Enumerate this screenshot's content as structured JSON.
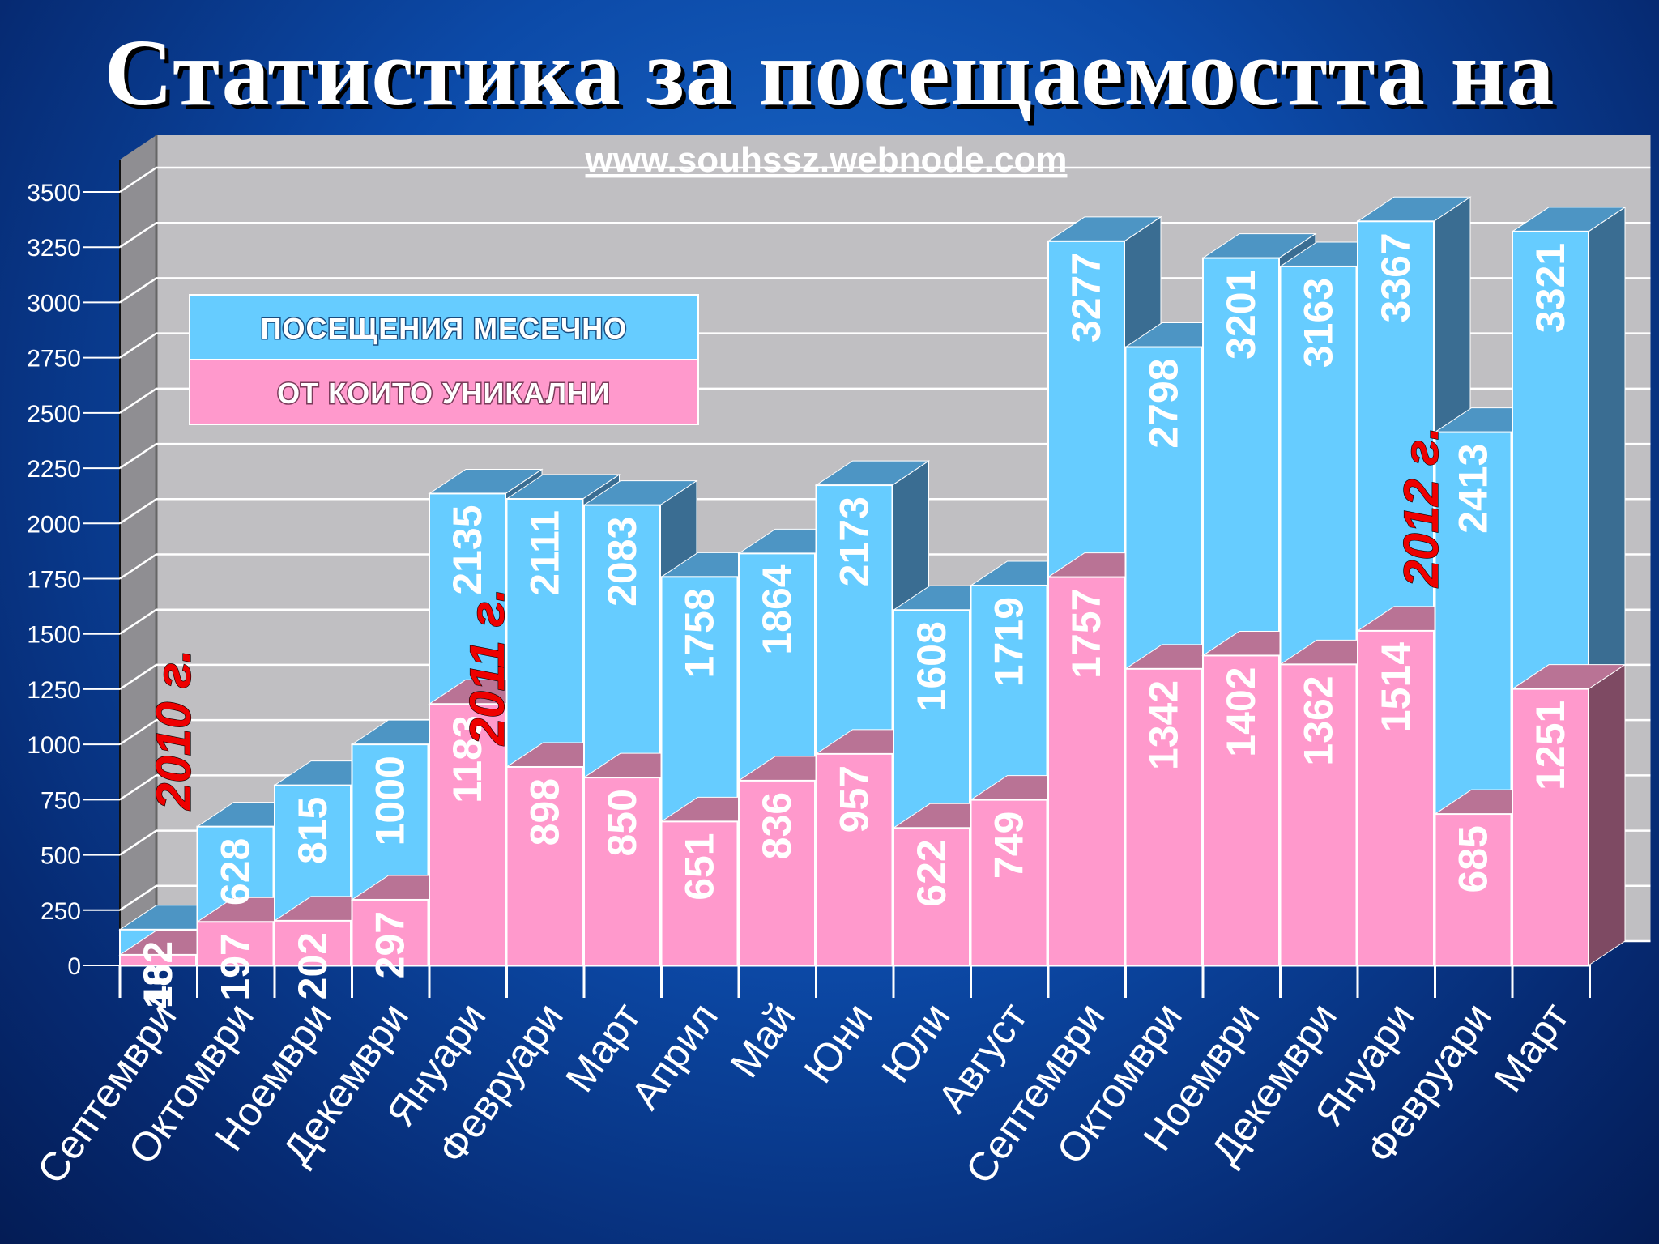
{
  "title": "Статистика за посещаемостта на",
  "subtitle": "www.souhssz.webnode.com",
  "legend": {
    "total_label": "ПОСЕЩЕНИЯ МЕСЕЧНО",
    "unique_label": "ОТ КОИТО УНИКАЛНИ"
  },
  "colors": {
    "total": "#66ccff",
    "unique": "#ff99cc",
    "wall": "#c0bfc2",
    "year_marker": "#ee0000"
  },
  "chart_data": {
    "type": "bar",
    "title": "Статистика за посещаемостта на",
    "categories": [
      "Септември",
      "Октомври",
      "Ноември",
      "Декември",
      "Януари",
      "Февруари",
      "Март",
      "Април",
      "Май",
      "Юни",
      "Юли",
      "Август",
      "Септември",
      "Октомври",
      "Ноември",
      "Декември",
      "Януари",
      "Февруари",
      "Март"
    ],
    "series": [
      {
        "name": "ПОСЕЩЕНИЯ МЕСЕЧНО",
        "values": [
          162,
          628,
          815,
          1000,
          2135,
          2111,
          2083,
          1758,
          1864,
          2173,
          1608,
          1719,
          3277,
          2798,
          3201,
          3163,
          3367,
          2413,
          3321
        ]
      },
      {
        "name": "ОТ КОИТО УНИКАЛНИ",
        "values": [
          48,
          197,
          202,
          297,
          1183,
          898,
          850,
          651,
          836,
          957,
          622,
          749,
          1757,
          1342,
          1402,
          1362,
          1514,
          685,
          1251
        ]
      }
    ],
    "yticks": [
      0,
      250,
      500,
      750,
      1000,
      1250,
      1500,
      1750,
      2000,
      2250,
      2500,
      2750,
      3000,
      3250,
      3500
    ],
    "ylim": [
      0,
      3500
    ],
    "grid": true,
    "legend_position": "top-left",
    "year_markers": [
      {
        "label": "2010 г.",
        "category_index": 0
      },
      {
        "label": "2011 г.",
        "category_index": 4
      },
      {
        "label": "2012 г.",
        "category_index": 16
      }
    ]
  }
}
